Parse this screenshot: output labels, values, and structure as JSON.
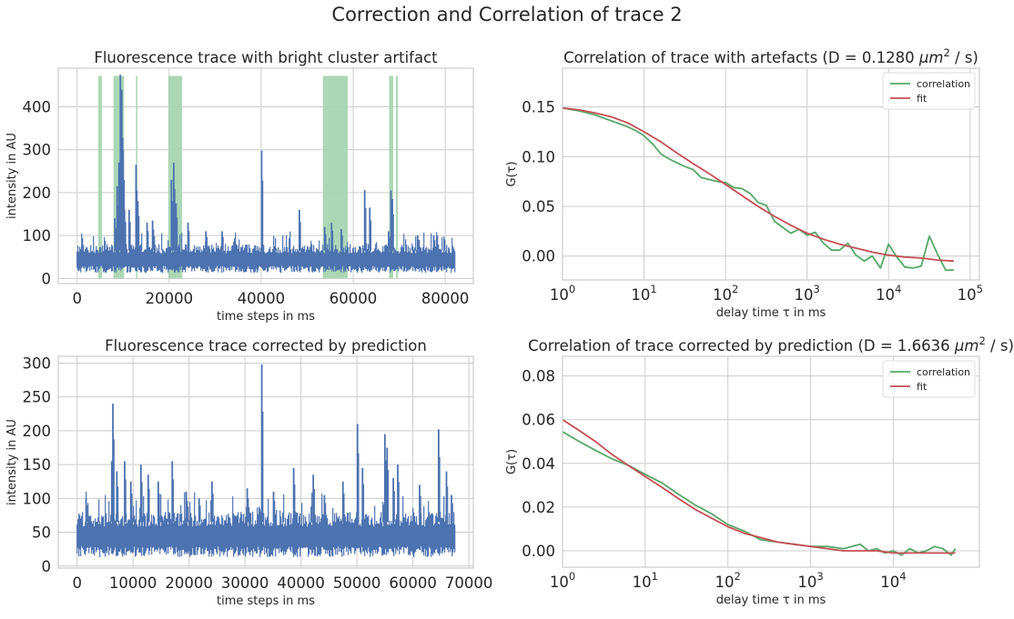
{
  "figure": {
    "suptitle": "Correction and Correlation of trace 2",
    "colors": {
      "trace": "#4c72b0",
      "artifact": "#a8d5b1",
      "correlation": "#55a868",
      "fit": "#c44e52",
      "grid": "#cccccc"
    }
  },
  "chart_data": [
    {
      "id": "trace_artifacts",
      "type": "line",
      "title": "Fluorescence trace with bright cluster artifact",
      "xlabel": "time steps in ms",
      "ylabel": "intensity in AU",
      "xlim": [
        -4100,
        86100
      ],
      "ylim": [
        -12,
        490
      ],
      "xticks": [
        0,
        20000,
        40000,
        60000,
        80000
      ],
      "xticklabels": [
        "0",
        "20000",
        "40000",
        "60000",
        "80000"
      ],
      "yticks": [
        0,
        100,
        200,
        300,
        400
      ],
      "yticklabels": [
        "0",
        "100",
        "200",
        "300",
        "400"
      ],
      "grid": true,
      "n_points": 82000,
      "baseline": {
        "low": 25,
        "high": 65
      },
      "artifact_regions": [
        [
          4600,
          5400
        ],
        [
          7900,
          10200
        ],
        [
          12800,
          13100
        ],
        [
          19800,
          22800
        ],
        [
          53400,
          58800
        ],
        [
          67800,
          68700
        ],
        [
          69300,
          69700
        ]
      ],
      "artifact_band_ylim": [
        0,
        472
      ],
      "spikes": [
        [
          8200,
          140
        ],
        [
          8700,
          215
        ],
        [
          9100,
          270
        ],
        [
          9400,
          475
        ],
        [
          9700,
          440
        ],
        [
          10000,
          300
        ],
        [
          10300,
          160
        ],
        [
          11300,
          160
        ],
        [
          12800,
          265
        ],
        [
          13200,
          180
        ],
        [
          15200,
          130
        ],
        [
          16400,
          135
        ],
        [
          20500,
          230
        ],
        [
          21000,
          270
        ],
        [
          21500,
          175
        ],
        [
          24100,
          130
        ],
        [
          28000,
          110
        ],
        [
          31500,
          110
        ],
        [
          40100,
          298
        ],
        [
          48300,
          160
        ],
        [
          53800,
          120
        ],
        [
          55300,
          130
        ],
        [
          57400,
          115
        ],
        [
          62500,
          206
        ],
        [
          63600,
          165
        ],
        [
          67700,
          110
        ],
        [
          68200,
          205
        ],
        [
          68500,
          185
        ],
        [
          74000,
          100
        ],
        [
          77500,
          100
        ]
      ]
    },
    {
      "id": "correlation_artifacts",
      "type": "line",
      "title": "Correlation of trace with artefacts (D = 0.1280 μm² / s)",
      "title_parts": {
        "prefix": "Correlation of trace with artefacts (D = 0.1280 ",
        "unit": "μm",
        "unit_exp": "2",
        "suffix": " / s)"
      },
      "xlabel": "delay time τ in ms",
      "ylabel": "G(τ)",
      "xscale": "log",
      "xlim": [
        1,
        130000
      ],
      "ylim": [
        -0.024,
        0.189
      ],
      "xticks": [
        1,
        10,
        100,
        1000,
        10000,
        100000
      ],
      "xticklabels": [
        [
          "10",
          "0"
        ],
        [
          "10",
          "1"
        ],
        [
          "10",
          "2"
        ],
        [
          "10",
          "3"
        ],
        [
          "10",
          "4"
        ],
        [
          "10",
          "5"
        ]
      ],
      "yticks": [
        0.0,
        0.05,
        0.1,
        0.15
      ],
      "yticklabels": [
        "0.00",
        "0.05",
        "0.10",
        "0.15"
      ],
      "grid": true,
      "legend_position": "top-right",
      "series": [
        {
          "name": "correlation",
          "color": "#55a868",
          "x": [
            1,
            1.6,
            2.5,
            4,
            6.3,
            8,
            10,
            13,
            16,
            20,
            25,
            32,
            40,
            50,
            63,
            80,
            100,
            126,
            158,
            200,
            251,
            316,
            398,
            501,
            631,
            794,
            1000,
            1259,
            1585,
            1995,
            2512,
            3162,
            3981,
            5012,
            6310,
            7943,
            10000,
            12589,
            15849,
            19953,
            25119,
            31623,
            39811,
            50119,
            63096
          ],
          "y": [
            0.149,
            0.146,
            0.142,
            0.136,
            0.13,
            0.126,
            0.121,
            0.112,
            0.103,
            0.098,
            0.094,
            0.09,
            0.087,
            0.079,
            0.077,
            0.075,
            0.074,
            0.069,
            0.068,
            0.063,
            0.054,
            0.051,
            0.035,
            0.029,
            0.023,
            0.027,
            0.021,
            0.024,
            0.013,
            0.006,
            0.006,
            0.013,
            0.001,
            -0.005,
            0.0,
            -0.012,
            0.012,
            -0.001,
            -0.011,
            -0.012,
            -0.01,
            0.02,
            0.002,
            -0.014,
            -0.014
          ]
        },
        {
          "name": "fit",
          "color": "#c44e52",
          "x": [
            1,
            1.6,
            2.5,
            4,
            6.3,
            10,
            16,
            25,
            40,
            63,
            100,
            158,
            251,
            398,
            631,
            1000,
            1585,
            2512,
            3981,
            6310,
            10000,
            15849,
            25119,
            39811,
            63096
          ],
          "y": [
            0.149,
            0.147,
            0.144,
            0.14,
            0.134,
            0.125,
            0.115,
            0.104,
            0.093,
            0.083,
            0.072,
            0.061,
            0.05,
            0.04,
            0.031,
            0.023,
            0.017,
            0.012,
            0.008,
            0.004,
            0.001,
            -0.001,
            -0.002,
            -0.004,
            -0.005
          ]
        }
      ]
    },
    {
      "id": "trace_corrected",
      "type": "line",
      "title": "Fluorescence trace corrected by prediction",
      "xlabel": "time steps in ms",
      "ylabel": "intensity in AU",
      "xlim": [
        -3370,
        70800
      ],
      "ylim": [
        -3,
        310
      ],
      "xticks": [
        0,
        10000,
        20000,
        30000,
        40000,
        50000,
        60000,
        70000
      ],
      "xticklabels": [
        "0",
        "10000",
        "20000",
        "30000",
        "40000",
        "50000",
        "60000",
        "70000"
      ],
      "yticks": [
        0,
        50,
        100,
        150,
        200,
        250,
        300
      ],
      "yticklabels": [
        "0",
        "50",
        "100",
        "150",
        "200",
        "250",
        "300"
      ],
      "grid": true,
      "n_points": 67500,
      "baseline": {
        "low": 25,
        "high": 65
      },
      "spikes": [
        [
          1600,
          100
        ],
        [
          6200,
          155
        ],
        [
          6400,
          240
        ],
        [
          7100,
          140
        ],
        [
          8500,
          155
        ],
        [
          9600,
          125
        ],
        [
          11400,
          150
        ],
        [
          12700,
          135
        ],
        [
          14500,
          125
        ],
        [
          17000,
          155
        ],
        [
          19500,
          110
        ],
        [
          21800,
          100
        ],
        [
          24100,
          125
        ],
        [
          30400,
          115
        ],
        [
          33000,
          298
        ],
        [
          35100,
          110
        ],
        [
          38700,
          145
        ],
        [
          42200,
          135
        ],
        [
          44200,
          105
        ],
        [
          47500,
          125
        ],
        [
          50100,
          210
        ],
        [
          51000,
          145
        ],
        [
          55000,
          195
        ],
        [
          55400,
          175
        ],
        [
          56500,
          130
        ],
        [
          57300,
          150
        ],
        [
          61200,
          120
        ],
        [
          64600,
          202
        ],
        [
          66000,
          140
        ],
        [
          66900,
          105
        ]
      ]
    },
    {
      "id": "correlation_corrected",
      "type": "line",
      "title": "Correlation of trace corrected by prediction (D = 1.6636 μm² / s)",
      "title_parts": {
        "prefix": "Correlation of trace corrected by prediction (D = 1.6636 ",
        "unit": "μm",
        "unit_exp": "2",
        "suffix": " / s)"
      },
      "xlabel": "delay time τ in ms",
      "ylabel": "G(τ)",
      "xscale": "log",
      "xlim": [
        1,
        110000
      ],
      "ylim": [
        -0.0075,
        0.089
      ],
      "xticks": [
        1,
        10,
        100,
        1000,
        10000
      ],
      "xticklabels": [
        [
          "10",
          "0"
        ],
        [
          "10",
          "1"
        ],
        [
          "10",
          "2"
        ],
        [
          "10",
          "3"
        ],
        [
          "10",
          "4"
        ]
      ],
      "yticks": [
        0.0,
        0.02,
        0.04,
        0.06,
        0.08
      ],
      "yticklabels": [
        "0.00",
        "0.02",
        "0.04",
        "0.06",
        "0.08"
      ],
      "grid": true,
      "legend_position": "top-right",
      "series": [
        {
          "name": "correlation",
          "color": "#55a868",
          "x": [
            1,
            1.6,
            2.5,
            4,
            6.3,
            10,
            16,
            25,
            40,
            63,
            100,
            158,
            251,
            398,
            631,
            1000,
            1585,
            2512,
            3981,
            5012,
            6310,
            7943,
            10000,
            12589,
            15849,
            19953,
            25119,
            31623,
            39811,
            50119,
            56234
          ],
          "y": [
            0.0545,
            0.05,
            0.046,
            0.042,
            0.039,
            0.035,
            0.031,
            0.026,
            0.021,
            0.017,
            0.012,
            0.009,
            0.005,
            0.004,
            0.003,
            0.002,
            0.002,
            0.001,
            0.003,
            0.0,
            0.001,
            -0.001,
            0.0,
            -0.002,
            0.001,
            -0.001,
            0.0,
            0.002,
            0.001,
            -0.002,
            0.001
          ]
        },
        {
          "name": "fit",
          "color": "#c44e52",
          "x": [
            1,
            1.6,
            2.5,
            4,
            6.3,
            10,
            16,
            25,
            40,
            63,
            100,
            158,
            251,
            398,
            631,
            1000,
            1585,
            2512,
            3981,
            6310,
            10000,
            15849,
            25119,
            39811,
            56234
          ],
          "y": [
            0.06,
            0.055,
            0.05,
            0.044,
            0.039,
            0.034,
            0.029,
            0.024,
            0.019,
            0.015,
            0.011,
            0.008,
            0.006,
            0.004,
            0.003,
            0.002,
            0.001,
            0.0,
            0.0,
            0.0,
            -0.001,
            -0.001,
            -0.001,
            -0.001,
            -0.001
          ]
        }
      ]
    }
  ]
}
